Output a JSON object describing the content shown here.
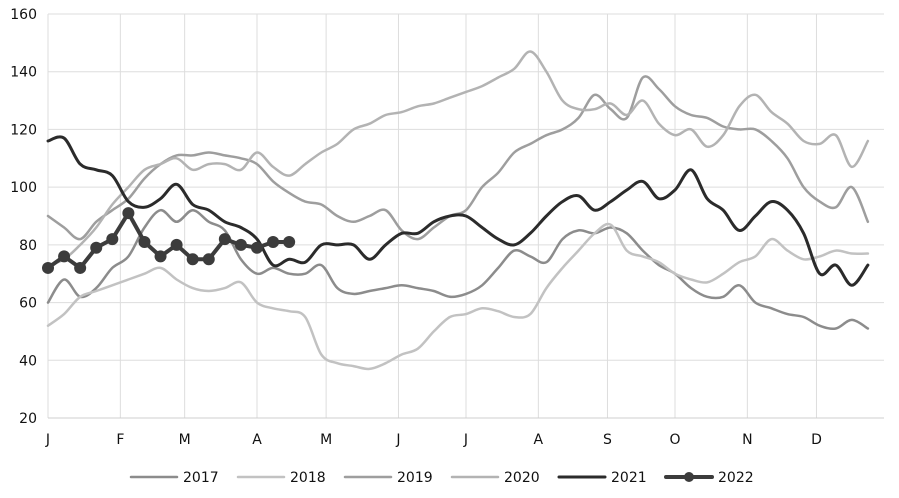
{
  "chart_data": {
    "type": "line",
    "title": "",
    "xlabel": "",
    "ylabel": "",
    "ylim": [
      20,
      160
    ],
    "yticks": [
      20,
      40,
      60,
      80,
      100,
      120,
      140,
      160
    ],
    "xlim": [
      1,
      53
    ],
    "xticks": [
      {
        "label": "J",
        "week": 1
      },
      {
        "label": "F",
        "week": 5.5
      },
      {
        "label": "M",
        "week": 9.5
      },
      {
        "label": "A",
        "week": 14
      },
      {
        "label": "M",
        "week": 18.3
      },
      {
        "label": "J",
        "week": 22.8
      },
      {
        "label": "J",
        "week": 27
      },
      {
        "label": "A",
        "week": 31.5
      },
      {
        "label": "S",
        "week": 35.8
      },
      {
        "label": "O",
        "week": 40
      },
      {
        "label": "N",
        "week": 44.5
      },
      {
        "label": "D",
        "week": 48.8
      }
    ],
    "grid": true,
    "legend_position": "bottom",
    "series": [
      {
        "name": "2017",
        "color": "#8c8c8c",
        "width": 2.5,
        "markers": false,
        "x": [
          1,
          2,
          3,
          4,
          5,
          6,
          7,
          8,
          9,
          10,
          11,
          12,
          13,
          14,
          15,
          16,
          17,
          18,
          19,
          20,
          21,
          22,
          23,
          24,
          25,
          26,
          27,
          28,
          29,
          30,
          31,
          32,
          33,
          34,
          35,
          36,
          37,
          38,
          39,
          40,
          41,
          42,
          43,
          44,
          45,
          46,
          47,
          48,
          49,
          50,
          51,
          52
        ],
        "y": [
          60,
          68,
          62,
          65,
          72,
          76,
          86,
          92,
          88,
          92,
          88,
          85,
          75,
          70,
          72,
          70,
          70,
          73,
          65,
          63,
          64,
          65,
          66,
          65,
          64,
          62,
          63,
          66,
          72,
          78,
          76,
          74,
          82,
          85,
          84,
          86,
          84,
          78,
          73,
          70,
          65,
          62,
          62,
          66,
          60,
          58,
          56,
          55,
          52,
          51,
          54,
          51
        ]
      },
      {
        "name": "2018",
        "color": "#c2c2c2",
        "width": 2.5,
        "markers": false,
        "x": [
          1,
          2,
          3,
          4,
          5,
          6,
          7,
          8,
          9,
          10,
          11,
          12,
          13,
          14,
          15,
          16,
          17,
          18,
          19,
          20,
          21,
          22,
          23,
          24,
          25,
          26,
          27,
          28,
          29,
          30,
          31,
          32,
          33,
          34,
          35,
          36,
          37,
          38,
          39,
          40,
          41,
          42,
          43,
          44,
          45,
          46,
          47,
          48,
          49,
          50,
          51,
          52
        ],
        "y": [
          52,
          56,
          62,
          64,
          66,
          68,
          70,
          72,
          68,
          65,
          64,
          65,
          67,
          60,
          58,
          57,
          55,
          42,
          39,
          38,
          37,
          39,
          42,
          44,
          50,
          55,
          56,
          58,
          57,
          55,
          56,
          65,
          72,
          78,
          84,
          87,
          78,
          76,
          74,
          70,
          68,
          67,
          70,
          74,
          76,
          82,
          78,
          75,
          76,
          78,
          77,
          77
        ]
      },
      {
        "name": "2019",
        "color": "#9e9e9e",
        "width": 2.5,
        "markers": false,
        "x": [
          1,
          2,
          3,
          4,
          5,
          6,
          7,
          8,
          9,
          10,
          11,
          12,
          13,
          14,
          15,
          16,
          17,
          18,
          19,
          20,
          21,
          22,
          23,
          24,
          25,
          26,
          27,
          28,
          29,
          30,
          31,
          32,
          33,
          34,
          35,
          36,
          37,
          38,
          39,
          40,
          41,
          42,
          43,
          44,
          45,
          46,
          47,
          48,
          49,
          50,
          51,
          52
        ],
        "y": [
          90,
          86,
          82,
          88,
          92,
          96,
          103,
          108,
          111,
          111,
          112,
          111,
          110,
          108,
          102,
          98,
          95,
          94,
          90,
          88,
          90,
          92,
          85,
          82,
          86,
          90,
          92,
          100,
          105,
          112,
          115,
          118,
          120,
          124,
          132,
          127,
          124,
          138,
          134,
          128,
          125,
          124,
          121,
          120,
          120,
          116,
          110,
          100,
          95,
          93,
          100,
          88
        ]
      },
      {
        "name": "2020",
        "color": "#b3b3b3",
        "width": 2.5,
        "markers": false,
        "x": [
          1,
          2,
          3,
          4,
          5,
          6,
          7,
          8,
          9,
          10,
          11,
          12,
          13,
          14,
          15,
          16,
          17,
          18,
          19,
          20,
          21,
          22,
          23,
          24,
          25,
          26,
          27,
          28,
          29,
          30,
          31,
          32,
          33,
          34,
          35,
          36,
          37,
          38,
          39,
          40,
          41,
          42,
          43,
          44,
          45,
          46,
          47,
          48,
          49,
          50,
          51,
          52
        ],
        "y": [
          73,
          75,
          80,
          86,
          94,
          100,
          106,
          108,
          110,
          106,
          108,
          108,
          106,
          112,
          107,
          104,
          108,
          112,
          115,
          120,
          122,
          125,
          126,
          128,
          129,
          131,
          133,
          135,
          138,
          141,
          147,
          140,
          130,
          127,
          127,
          129,
          125,
          130,
          122,
          118,
          120,
          114,
          118,
          128,
          132,
          126,
          122,
          116,
          115,
          118,
          107,
          116
        ]
      },
      {
        "name": "2021",
        "color": "#2b2b2b",
        "width": 3,
        "markers": false,
        "x": [
          1,
          2,
          3,
          4,
          5,
          6,
          7,
          8,
          9,
          10,
          11,
          12,
          13,
          14,
          15,
          16,
          17,
          18,
          19,
          20,
          21,
          22,
          23,
          24,
          25,
          26,
          27,
          28,
          29,
          30,
          31,
          32,
          33,
          34,
          35,
          36,
          37,
          38,
          39,
          40,
          41,
          42,
          43,
          44,
          45,
          46,
          47,
          48,
          49,
          50,
          51,
          52
        ],
        "y": [
          116,
          117,
          108,
          106,
          104,
          95,
          93,
          96,
          101,
          94,
          92,
          88,
          86,
          82,
          73,
          75,
          74,
          80,
          80,
          80,
          75,
          80,
          84,
          84,
          88,
          90,
          90,
          86,
          82,
          80,
          84,
          90,
          95,
          97,
          92,
          95,
          99,
          102,
          96,
          99,
          106,
          96,
          92,
          85,
          90,
          95,
          92,
          84,
          70,
          73,
          66,
          73
        ]
      },
      {
        "name": "2022",
        "color": "#3c3c3c",
        "width": 4,
        "markers": true,
        "x": [
          1,
          2,
          3,
          4,
          5,
          6,
          7,
          8,
          9,
          10,
          11,
          12,
          13,
          14,
          15,
          16
        ],
        "y": [
          72,
          76,
          72,
          79,
          82,
          91,
          81,
          76,
          80,
          75,
          75,
          82,
          80,
          79,
          81,
          81
        ]
      }
    ]
  }
}
